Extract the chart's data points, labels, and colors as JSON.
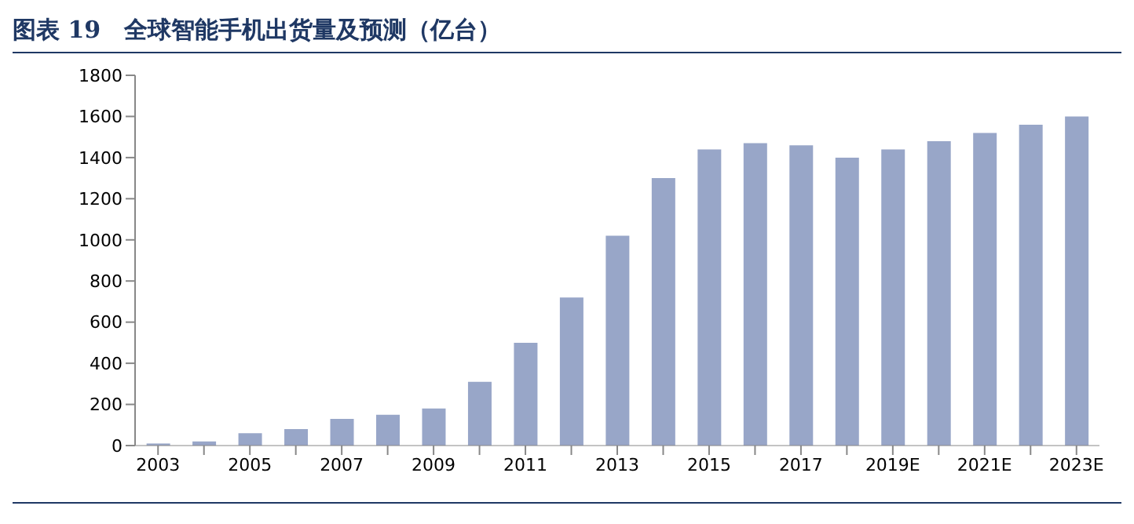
{
  "chart_data": {
    "type": "bar",
    "title": "图表 19　全球智能手机出货量及预测（亿台）",
    "categories": [
      "2003",
      null,
      "2005",
      null,
      "2007",
      null,
      "2009",
      null,
      "2011",
      null,
      "2013",
      null,
      "2015",
      null,
      "2017",
      null,
      "2019E",
      null,
      "2021E",
      null,
      "2023E"
    ],
    "series": [
      {
        "color": "#98a6c8",
        "values": [
          10,
          20,
          60,
          80,
          130,
          150,
          180,
          310,
          500,
          720,
          1020,
          1300,
          1440,
          1470,
          1460,
          1400,
          1440,
          1480,
          1520,
          1560,
          1600
        ]
      }
    ],
    "ylim": [
      0,
      1800
    ],
    "yticks": [
      0,
      200,
      400,
      600,
      800,
      1000,
      1200,
      1400,
      1600,
      1800
    ],
    "grid": false,
    "legend": false
  }
}
